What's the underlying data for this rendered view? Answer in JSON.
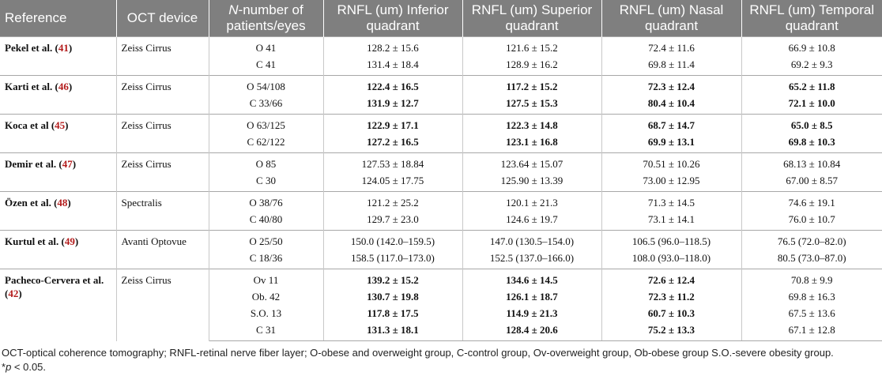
{
  "headers": {
    "reference": "Reference",
    "device": "OCT device",
    "number_prefix": "N",
    "number_rest": "-number of patients/eyes",
    "inferior": "RNFL (um) Inferior quadrant",
    "superior": "RNFL (um) Superior quadrant",
    "nasal": "RNFL (um) Nasal quadrant",
    "temporal": "RNFL (um) Temporal quadrant"
  },
  "groups": [
    {
      "ref_text": "Pekel et al. (",
      "cite": "41",
      "ref_close": ")",
      "device": "Zeiss Cirrus",
      "rows": [
        {
          "n": "O 41",
          "inf": "128.2 ± 15.6",
          "sup": "121.6 ± 15.2",
          "nas": "72.4 ± 11.6",
          "tem": "66.9 ± 10.8",
          "bold": [
            false,
            false,
            false,
            false
          ]
        },
        {
          "n": "C 41",
          "inf": "131.4 ± 18.4",
          "sup": "128.9 ± 16.2",
          "nas": "69.8 ± 11.4",
          "tem": "69.2 ± 9.3",
          "bold": [
            false,
            false,
            false,
            false
          ]
        }
      ]
    },
    {
      "ref_text": "Karti et al. (",
      "cite": "46",
      "ref_close": ")",
      "device": "Zeiss Cirrus",
      "rows": [
        {
          "n": "O 54/108",
          "inf": "122.4 ± 16.5",
          "sup": "117.2 ± 15.2",
          "nas": "72.3 ± 12.4",
          "tem": "65.2 ± 11.8",
          "bold": [
            true,
            true,
            true,
            true
          ]
        },
        {
          "n": "C 33/66",
          "inf": "131.9 ± 12.7",
          "sup": "127.5 ± 15.3",
          "nas": "80.4 ± 10.4",
          "tem": "72.1 ± 10.0",
          "bold": [
            true,
            true,
            true,
            true
          ]
        }
      ]
    },
    {
      "ref_text": "Koca et al (",
      "cite": "45",
      "ref_close": ")",
      "device": "Zeiss Cirrus",
      "rows": [
        {
          "n": "O 63/125",
          "inf": "122.9 ± 17.1",
          "sup": "122.3 ± 14.8",
          "nas": "68.7 ± 14.7",
          "tem": "65.0 ± 8.5",
          "bold": [
            true,
            true,
            true,
            true
          ]
        },
        {
          "n": "C 62/122",
          "inf": "127.2 ± 16.5",
          "sup": "123.1 ± 16.8",
          "nas": "69.9 ± 13.1",
          "tem": "69.8 ± 10.3",
          "bold": [
            true,
            true,
            true,
            true
          ]
        }
      ]
    },
    {
      "ref_text": "Demir et al. (",
      "cite": "47",
      "ref_close": ")",
      "device": "Zeiss Cirrus",
      "rows": [
        {
          "n": "O 85",
          "inf": "127.53 ± 18.84",
          "sup": "123.64 ± 15.07",
          "nas": "70.51 ± 10.26",
          "tem": "68.13 ± 10.84",
          "bold": [
            false,
            false,
            false,
            false
          ]
        },
        {
          "n": "C 30",
          "inf": "124.05 ± 17.75",
          "sup": "125.90 ± 13.39",
          "nas": "73.00 ± 12.95",
          "tem": "67.00 ± 8.57",
          "bold": [
            false,
            false,
            false,
            false
          ]
        }
      ]
    },
    {
      "ref_text": "Özen et al. (",
      "cite": "48",
      "ref_close": ")",
      "device": "Spectralis",
      "rows": [
        {
          "n": "O 38/76",
          "inf": "121.2 ± 25.2",
          "sup": "120.1 ± 21.3",
          "nas": "71.3 ± 14.5",
          "tem": "74.6 ± 19.1",
          "bold": [
            false,
            false,
            false,
            false
          ]
        },
        {
          "n": "C 40/80",
          "inf": "129.7 ± 23.0",
          "sup": "124.6 ± 19.7",
          "nas": "73.1 ± 14.1",
          "tem": "76.0 ± 10.7",
          "bold": [
            false,
            false,
            false,
            false
          ]
        }
      ]
    },
    {
      "ref_text": "Kurtul et al. (",
      "cite": "49",
      "ref_close": ")",
      "device": "Avanti Optovue",
      "rows": [
        {
          "n": "O 25/50",
          "inf": "150.0 (142.0–159.5)",
          "sup": "147.0 (130.5–154.0)",
          "nas": "106.5 (96.0–118.5)",
          "tem": "76.5 (72.0–82.0)",
          "bold": [
            false,
            false,
            false,
            false
          ]
        },
        {
          "n": "C 18/36",
          "inf": "158.5 (117.0–173.0)",
          "sup": "152.5 (137.0–166.0)",
          "nas": "108.0 (93.0–118.0)",
          "tem": "80.5 (73.0–87.0)",
          "bold": [
            false,
            false,
            false,
            false
          ]
        }
      ]
    },
    {
      "ref_text": "Pacheco-Cervera et al. (",
      "cite": "42",
      "ref_close": ")",
      "device": "Zeiss Cirrus",
      "rows": [
        {
          "n": "Ov 11",
          "inf": "139.2 ± 15.2",
          "sup": "134.6 ± 14.5",
          "nas": "72.6 ± 12.4",
          "tem": "70.8 ± 9.9",
          "bold": [
            true,
            true,
            true,
            false
          ]
        },
        {
          "n": "Ob. 42",
          "inf": "130.7 ± 19.8",
          "sup": "126.1 ± 18.7",
          "nas": "72.3 ± 11.2",
          "tem": "69.8 ± 16.3",
          "bold": [
            true,
            true,
            true,
            false
          ]
        },
        {
          "n": "S.O. 13",
          "inf": "117.8 ± 17.5",
          "sup": "114.9 ± 21.3",
          "nas": "60.7 ± 10.3",
          "tem": "67.5 ± 13.6",
          "bold": [
            true,
            true,
            true,
            false
          ]
        },
        {
          "n": "C 31",
          "inf": "131.3 ± 18.1",
          "sup": "128.4 ± 20.6",
          "nas": "75.2 ± 13.3",
          "tem": "67.1 ± 12.8",
          "bold": [
            true,
            true,
            true,
            false
          ]
        }
      ]
    }
  ],
  "footnotes": {
    "abbreviations": "OCT-optical coherence tomography; RNFL-retinal nerve fiber layer; O-obese and overweight group, C-control group, Ov-overweight group, Ob-obese group S.O.-severe obesity group.",
    "sig_star": "*",
    "sig_p": "p",
    "sig_rest": " < 0.05."
  }
}
